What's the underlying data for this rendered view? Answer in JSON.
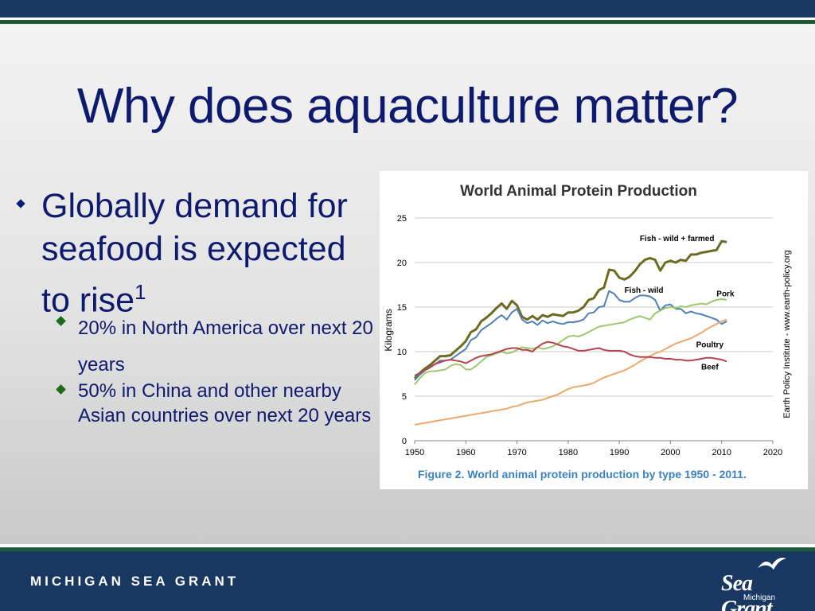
{
  "slide": {
    "title": "Why does aquaculture matter?",
    "main_bullet": {
      "text": "Globally demand for seafood is expected to rise",
      "superscript": "1"
    },
    "sub_bullets": [
      "20% in North America over next 20 years",
      "50% in China and other nearby Asian countries over next 20 years"
    ],
    "footer_org": "MICHIGAN SEA GRANT",
    "logo": {
      "name": "Sea Grant",
      "sub": "Michigan"
    }
  },
  "colors": {
    "title": "#0d1a6e",
    "fish_total": "#6b6b22",
    "fish_wild": "#4d7fb8",
    "pork": "#9bc96b",
    "poultry": "#f0a868",
    "beef": "#b5434d",
    "caption": "#3a82c4"
  },
  "chart_data": {
    "type": "line",
    "title": "World Animal Protein Production",
    "ylabel": "Kilograms",
    "xlabel": "",
    "side_label": "Earth Policy Institute - www.earth-policy.org",
    "caption": "Figure 2.  World animal protein production by type 1950 - 2011.",
    "xlim": [
      1950,
      2020
    ],
    "ylim": [
      0,
      25
    ],
    "x_ticks": [
      1950,
      1960,
      1970,
      1980,
      1990,
      2000,
      2010,
      2020
    ],
    "y_ticks": [
      0,
      5,
      10,
      15,
      20,
      25
    ],
    "grid": true,
    "series": [
      {
        "name": "Fish - wild + farmed",
        "color": "#6b6b22",
        "x": [
          1950,
          1951,
          1952,
          1953,
          1954,
          1955,
          1956,
          1957,
          1958,
          1959,
          1960,
          1961,
          1962,
          1963,
          1964,
          1965,
          1966,
          1967,
          1968,
          1969,
          1970,
          1971,
          1972,
          1973,
          1974,
          1975,
          1976,
          1977,
          1978,
          1979,
          1980,
          1981,
          1982,
          1983,
          1984,
          1985,
          1986,
          1987,
          1988,
          1989,
          1990,
          1991,
          1992,
          1993,
          1994,
          1995,
          1996,
          1997,
          1998,
          1999,
          2000,
          2001,
          2002,
          2003,
          2004,
          2005,
          2006,
          2007,
          2008,
          2009,
          2010,
          2011
        ],
        "values": [
          7.0,
          7.6,
          8.1,
          8.5,
          9.0,
          9.5,
          9.5,
          9.6,
          10.1,
          10.6,
          11.2,
          12.2,
          12.5,
          13.4,
          13.8,
          14.3,
          14.9,
          15.4,
          14.8,
          15.7,
          15.2,
          13.9,
          13.6,
          14.0,
          13.6,
          14.1,
          13.9,
          14.2,
          14.1,
          14.0,
          14.4,
          14.4,
          14.6,
          15.0,
          15.8,
          16.0,
          16.9,
          17.2,
          19.2,
          19.1,
          18.3,
          18.1,
          18.4,
          19.0,
          19.8,
          20.3,
          20.5,
          20.3,
          19.1,
          20.0,
          20.2,
          20.0,
          20.3,
          20.2,
          20.9,
          20.9,
          21.1,
          21.2,
          21.3,
          21.4,
          22.4,
          22.3
        ]
      },
      {
        "name": "Fish - wild",
        "color": "#4d7fb8",
        "x": [
          1950,
          1951,
          1952,
          1953,
          1954,
          1955,
          1956,
          1957,
          1958,
          1959,
          1960,
          1961,
          1962,
          1963,
          1964,
          1965,
          1966,
          1967,
          1968,
          1969,
          1970,
          1971,
          1972,
          1973,
          1974,
          1975,
          1976,
          1977,
          1978,
          1979,
          1980,
          1981,
          1982,
          1983,
          1984,
          1985,
          1986,
          1987,
          1988,
          1989,
          1990,
          1991,
          1992,
          1993,
          1994,
          1995,
          1996,
          1997,
          1998,
          1999,
          2000,
          2001,
          2002,
          2003,
          2004,
          2005,
          2006,
          2007,
          2008,
          2009,
          2010,
          2011
        ],
        "values": [
          6.8,
          7.4,
          7.9,
          8.2,
          8.6,
          9.0,
          9.0,
          9.1,
          9.5,
          9.9,
          10.3,
          11.3,
          11.6,
          12.4,
          12.8,
          13.2,
          13.7,
          14.1,
          13.6,
          14.4,
          14.8,
          13.6,
          13.2,
          13.4,
          13.0,
          13.5,
          13.2,
          13.4,
          13.2,
          13.1,
          13.3,
          13.3,
          13.4,
          13.6,
          14.3,
          14.4,
          15.0,
          15.1,
          16.8,
          16.5,
          15.8,
          15.6,
          15.6,
          16.0,
          16.3,
          16.3,
          16.2,
          15.8,
          14.6,
          15.2,
          15.3,
          14.8,
          14.8,
          14.3,
          14.5,
          14.3,
          14.2,
          14.0,
          13.8,
          13.6,
          13.1,
          13.4
        ]
      },
      {
        "name": "Pork",
        "color": "#9bc96b",
        "x": [
          1950,
          1951,
          1952,
          1953,
          1954,
          1955,
          1956,
          1957,
          1958,
          1959,
          1960,
          1961,
          1962,
          1963,
          1964,
          1965,
          1966,
          1967,
          1968,
          1969,
          1970,
          1971,
          1972,
          1973,
          1974,
          1975,
          1976,
          1977,
          1978,
          1979,
          1980,
          1981,
          1982,
          1983,
          1984,
          1985,
          1986,
          1987,
          1988,
          1989,
          1990,
          1991,
          1992,
          1993,
          1994,
          1995,
          1996,
          1997,
          1998,
          1999,
          2000,
          2001,
          2002,
          2003,
          2004,
          2005,
          2006,
          2007,
          2008,
          2009,
          2010,
          2011
        ],
        "values": [
          6.3,
          7.0,
          7.6,
          7.8,
          7.8,
          7.9,
          8.0,
          8.4,
          8.6,
          8.5,
          8.0,
          8.0,
          8.4,
          8.9,
          9.4,
          9.6,
          9.8,
          10.0,
          9.8,
          9.9,
          10.2,
          10.5,
          10.4,
          10.3,
          10.5,
          10.3,
          10.4,
          10.6,
          10.9,
          11.3,
          11.7,
          11.8,
          11.7,
          11.9,
          12.2,
          12.5,
          12.8,
          12.9,
          13.0,
          13.1,
          13.2,
          13.3,
          13.6,
          13.8,
          14.0,
          13.8,
          13.6,
          14.3,
          14.6,
          14.9,
          15.0,
          14.9,
          15.1,
          15.0,
          15.2,
          15.3,
          15.4,
          15.3,
          15.6,
          15.8,
          15.9,
          15.8
        ]
      },
      {
        "name": "Poultry",
        "color": "#f0a868",
        "x": [
          1950,
          1951,
          1952,
          1953,
          1954,
          1955,
          1956,
          1957,
          1958,
          1959,
          1960,
          1961,
          1962,
          1963,
          1964,
          1965,
          1966,
          1967,
          1968,
          1969,
          1970,
          1971,
          1972,
          1973,
          1974,
          1975,
          1976,
          1977,
          1978,
          1979,
          1980,
          1981,
          1982,
          1983,
          1984,
          1985,
          1986,
          1987,
          1988,
          1989,
          1990,
          1991,
          1992,
          1993,
          1994,
          1995,
          1996,
          1997,
          1998,
          1999,
          2000,
          2001,
          2002,
          2003,
          2004,
          2005,
          2006,
          2007,
          2008,
          2009,
          2010,
          2011
        ],
        "values": [
          1.8,
          1.9,
          2.0,
          2.1,
          2.2,
          2.3,
          2.4,
          2.5,
          2.6,
          2.7,
          2.8,
          2.9,
          3.0,
          3.1,
          3.2,
          3.3,
          3.4,
          3.5,
          3.6,
          3.8,
          3.9,
          4.1,
          4.3,
          4.4,
          4.5,
          4.6,
          4.8,
          5.0,
          5.2,
          5.5,
          5.8,
          6.0,
          6.1,
          6.2,
          6.3,
          6.5,
          6.8,
          7.1,
          7.3,
          7.5,
          7.7,
          7.9,
          8.2,
          8.5,
          8.9,
          9.2,
          9.5,
          9.8,
          10.0,
          10.3,
          10.6,
          10.9,
          11.1,
          11.3,
          11.5,
          11.8,
          12.1,
          12.5,
          12.8,
          13.1,
          13.4,
          13.6
        ]
      },
      {
        "name": "Beef",
        "color": "#b5434d",
        "x": [
          1950,
          1951,
          1952,
          1953,
          1954,
          1955,
          1956,
          1957,
          1958,
          1959,
          1960,
          1961,
          1962,
          1963,
          1964,
          1965,
          1966,
          1967,
          1968,
          1969,
          1970,
          1971,
          1972,
          1973,
          1974,
          1975,
          1976,
          1977,
          1978,
          1979,
          1980,
          1981,
          1982,
          1983,
          1984,
          1985,
          1986,
          1987,
          1988,
          1989,
          1990,
          1991,
          1992,
          1993,
          1994,
          1995,
          1996,
          1997,
          1998,
          1999,
          2000,
          2001,
          2002,
          2003,
          2004,
          2005,
          2006,
          2007,
          2008,
          2009,
          2010,
          2011
        ],
        "values": [
          7.3,
          7.6,
          7.9,
          8.3,
          8.6,
          8.8,
          9.0,
          9.1,
          9.0,
          8.9,
          8.7,
          9.0,
          9.3,
          9.5,
          9.6,
          9.7,
          9.9,
          10.1,
          10.3,
          10.4,
          10.4,
          10.2,
          10.2,
          10.0,
          10.5,
          10.9,
          11.1,
          11.0,
          10.8,
          10.6,
          10.5,
          10.3,
          10.1,
          10.1,
          10.2,
          10.3,
          10.4,
          10.2,
          10.1,
          10.1,
          10.1,
          10.0,
          9.7,
          9.5,
          9.4,
          9.4,
          9.4,
          9.3,
          9.3,
          9.2,
          9.2,
          9.1,
          9.1,
          9.0,
          9.0,
          9.1,
          9.2,
          9.3,
          9.3,
          9.2,
          9.1,
          8.9
        ]
      }
    ]
  }
}
